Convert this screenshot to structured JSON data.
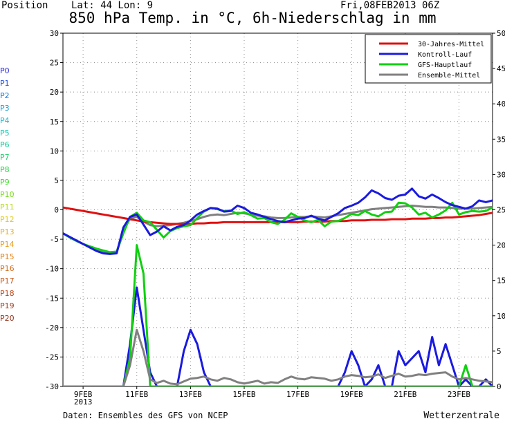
{
  "header": {
    "position_label": "Position",
    "coords": "Lat: 44  Lon: 9",
    "run": "Fri,08FEB2013 06Z",
    "title": "850 hPa Temp. in °C, 6h-Niederschlag in mm"
  },
  "footer": {
    "source": "Daten: Ensembles des GFS von NCEP",
    "brand": "Wetterzentrale"
  },
  "members": [
    {
      "label": "P0",
      "color": "#2a2ad6"
    },
    {
      "label": "P1",
      "color": "#1f4fd8"
    },
    {
      "label": "P2",
      "color": "#1a78d6"
    },
    {
      "label": "P3",
      "color": "#17a0d4"
    },
    {
      "label": "P4",
      "color": "#17b9cc"
    },
    {
      "label": "P5",
      "color": "#16c8b4"
    },
    {
      "label": "P6",
      "color": "#18c894"
    },
    {
      "label": "P7",
      "color": "#22cc6a"
    },
    {
      "label": "P8",
      "color": "#2ad24a"
    },
    {
      "label": "P9",
      "color": "#3ada22"
    },
    {
      "label": "P10",
      "color": "#74de18"
    },
    {
      "label": "P11",
      "color": "#b8dc18"
    },
    {
      "label": "P12",
      "color": "#e0cc18"
    },
    {
      "label": "P13",
      "color": "#e8b018"
    },
    {
      "label": "P14",
      "color": "#e89a18"
    },
    {
      "label": "P15",
      "color": "#e08218"
    },
    {
      "label": "P16",
      "color": "#d46c18"
    },
    {
      "label": "P17",
      "color": "#c85818"
    },
    {
      "label": "P18",
      "color": "#b84618"
    },
    {
      "label": "P19",
      "color": "#a83a16"
    },
    {
      "label": "P20",
      "color": "#982e16"
    }
  ],
  "chart_data": {
    "type": "line",
    "x_unit": "6h steps from 08FEB2013 06Z",
    "xlim": [
      0,
      64
    ],
    "ylim_left": [
      -30,
      30
    ],
    "ylim_right": [
      0,
      50
    ],
    "yticks_left": [
      30,
      25,
      20,
      15,
      10,
      5,
      0,
      -5,
      -10,
      -15,
      -20,
      -25,
      -30
    ],
    "yticks_right": [
      50,
      45,
      40,
      35,
      30,
      25,
      20,
      15,
      10,
      5,
      0
    ],
    "xticks": [
      {
        "x": 3,
        "label": "9FEB",
        "sub": "2013"
      },
      {
        "x": 11,
        "label": "11FEB"
      },
      {
        "x": 19,
        "label": "13FEB"
      },
      {
        "x": 27,
        "label": "15FEB"
      },
      {
        "x": 35,
        "label": "17FEB"
      },
      {
        "x": 43,
        "label": "19FEB"
      },
      {
        "x": 51,
        "label": "21FEB"
      },
      {
        "x": 59,
        "label": "23FEB"
      }
    ],
    "grid": true,
    "legend_position": "top-right",
    "legend": [
      {
        "label": "30-Jahres-Mittel",
        "color": "#e01010"
      },
      {
        "label": "Kontroll-Lauf",
        "color": "#1a1ae0"
      },
      {
        "label": "GFS-Hauptlauf",
        "color": "#10d010"
      },
      {
        "label": "Ensemble-Mittel",
        "color": "#808080"
      }
    ],
    "series": [
      {
        "name": "30-Jahres-Mittel",
        "color": "#e01010",
        "width": 3,
        "values": [
          0.4,
          0.2,
          0.0,
          -0.2,
          -0.4,
          -0.6,
          -0.8,
          -1.0,
          -1.2,
          -1.4,
          -1.6,
          -1.8,
          -2.0,
          -2.1,
          -2.2,
          -2.3,
          -2.4,
          -2.4,
          -2.4,
          -2.4,
          -2.3,
          -2.3,
          -2.2,
          -2.2,
          -2.1,
          -2.1,
          -2.1,
          -2.1,
          -2.1,
          -2.1,
          -2.1,
          -2.1,
          -2.1,
          -2.1,
          -2.1,
          -2.1,
          -2.0,
          -2.0,
          -2.0,
          -2.0,
          -1.9,
          -1.9,
          -1.9,
          -1.8,
          -1.8,
          -1.8,
          -1.7,
          -1.7,
          -1.7,
          -1.6,
          -1.6,
          -1.6,
          -1.5,
          -1.5,
          -1.5,
          -1.4,
          -1.4,
          -1.3,
          -1.3,
          -1.2,
          -1.1,
          -1.0,
          -0.9,
          -0.7,
          -0.5
        ]
      },
      {
        "name": "Kontroll-Lauf",
        "color": "#1a1ae0",
        "width": 3,
        "values": [
          -4.0,
          -4.6,
          -5.2,
          -5.8,
          -6.4,
          -7.0,
          -7.4,
          -7.5,
          -7.4,
          -3.0,
          -1.2,
          -0.8,
          -2.5,
          -4.3,
          -3.7,
          -2.8,
          -3.5,
          -2.9,
          -2.6,
          -1.8,
          -0.8,
          -0.2,
          0.3,
          0.2,
          -0.3,
          -0.2,
          0.7,
          0.3,
          -0.5,
          -0.8,
          -1.2,
          -1.6,
          -1.9,
          -2.1,
          -1.8,
          -1.5,
          -1.4,
          -1.0,
          -1.5,
          -1.8,
          -1.2,
          -0.6,
          0.3,
          0.7,
          1.2,
          2.1,
          3.3,
          2.8,
          2.0,
          1.7,
          2.4,
          2.6,
          3.6,
          2.3,
          1.9,
          2.6,
          2.0,
          1.3,
          0.8,
          0.5,
          0.2,
          0.6,
          1.6,
          1.3,
          1.6
        ]
      },
      {
        "name": "GFS-Hauptlauf",
        "color": "#10d010",
        "width": 3,
        "values": [
          -4.0,
          -4.7,
          -5.3,
          -5.8,
          -6.2,
          -6.6,
          -6.9,
          -7.2,
          -7.1,
          -4.0,
          -1.2,
          -0.5,
          -1.8,
          -2.1,
          -3.4,
          -4.7,
          -3.6,
          -3.1,
          -2.8,
          -2.6,
          -1.4,
          -0.3,
          0.3,
          0.1,
          -0.2,
          -0.1,
          -0.7,
          -0.4,
          -0.9,
          -1.5,
          -1.4,
          -2.1,
          -2.4,
          -1.7,
          -0.6,
          -1.2,
          -1.8,
          -2.1,
          -1.7,
          -2.8,
          -2.0,
          -1.9,
          -1.4,
          -0.7,
          -0.9,
          -0.2,
          -0.8,
          -1.1,
          -0.4,
          -0.3,
          1.2,
          1.1,
          0.4,
          -0.8,
          -0.5,
          -1.3,
          -0.8,
          -0.1,
          1.2,
          -0.8,
          -0.4,
          -0.2,
          -0.3,
          -0.2,
          0.4
        ]
      },
      {
        "name": "Ensemble-Mittel",
        "color": "#808080",
        "width": 3,
        "values": [
          -4.0,
          -4.6,
          -5.2,
          -5.8,
          -6.3,
          -6.8,
          -7.2,
          -7.4,
          -7.3,
          -3.5,
          -1.5,
          -1.2,
          -2.0,
          -2.6,
          -2.8,
          -2.7,
          -2.6,
          -2.4,
          -2.2,
          -1.9,
          -1.6,
          -1.2,
          -0.9,
          -0.8,
          -0.9,
          -0.7,
          -0.5,
          -0.6,
          -0.8,
          -1.0,
          -1.1,
          -1.3,
          -1.4,
          -1.4,
          -1.3,
          -1.2,
          -1.2,
          -1.1,
          -1.2,
          -1.3,
          -1.1,
          -0.9,
          -0.7,
          -0.5,
          -0.3,
          -0.1,
          0.1,
          0.2,
          0.3,
          0.4,
          0.5,
          0.6,
          0.7,
          0.6,
          0.5,
          0.5,
          0.4,
          0.4,
          0.3,
          0.2,
          0.2,
          0.2,
          0.3,
          0.4,
          0.5
        ]
      }
    ],
    "precip_series": [
      {
        "name": "Kontroll-Lauf",
        "color": "#1a1ae0",
        "width": 3,
        "values": [
          0,
          0,
          0,
          0,
          0,
          0,
          0,
          0,
          0,
          0,
          6,
          14,
          8,
          2,
          0,
          0,
          0,
          0,
          5,
          8,
          6,
          2,
          0,
          0,
          0,
          0,
          0,
          0,
          0,
          0,
          0,
          0,
          0,
          0,
          0,
          0,
          0,
          0,
          0,
          0,
          0,
          0,
          2,
          5,
          3,
          0,
          1,
          3,
          0,
          0,
          5,
          3,
          4,
          5,
          2,
          7,
          3,
          6,
          3,
          0,
          1,
          0,
          0,
          1,
          0
        ]
      },
      {
        "name": "GFS-Hauptlauf",
        "color": "#10d010",
        "width": 3,
        "values": [
          0,
          0,
          0,
          0,
          0,
          0,
          0,
          0,
          0,
          0,
          4,
          20,
          16,
          0,
          0,
          0,
          0,
          0,
          0,
          0,
          0,
          0,
          0,
          0,
          0,
          0,
          0,
          0,
          0,
          0,
          0,
          0,
          0,
          0,
          0,
          0,
          0,
          0,
          0,
          0,
          0,
          0,
          0,
          0,
          0,
          0,
          0,
          0,
          0,
          0,
          0,
          0,
          0,
          0,
          0,
          0,
          0,
          0,
          0,
          0,
          3,
          0,
          0,
          0,
          0
        ]
      },
      {
        "name": "Ensemble-Mittel",
        "color": "#808080",
        "width": 3,
        "values": [
          0,
          0,
          0,
          0,
          0,
          0,
          0,
          0,
          0,
          0,
          3,
          8,
          5,
          1,
          0.5,
          0.8,
          0.4,
          0.3,
          0.7,
          1.1,
          1.2,
          1.4,
          1.0,
          0.8,
          1.2,
          1.0,
          0.6,
          0.4,
          0.6,
          0.8,
          0.4,
          0.6,
          0.5,
          1.0,
          1.4,
          1.1,
          1.0,
          1.3,
          1.2,
          1.1,
          0.8,
          1.0,
          1.4,
          1.6,
          1.5,
          1.3,
          1.4,
          1.7,
          1.2,
          1.5,
          1.8,
          1.4,
          1.5,
          1.7,
          1.6,
          1.8,
          1.9,
          2.0,
          1.4,
          1.0,
          1.2,
          1.0,
          0.8,
          0.7,
          0.6
        ]
      }
    ]
  }
}
